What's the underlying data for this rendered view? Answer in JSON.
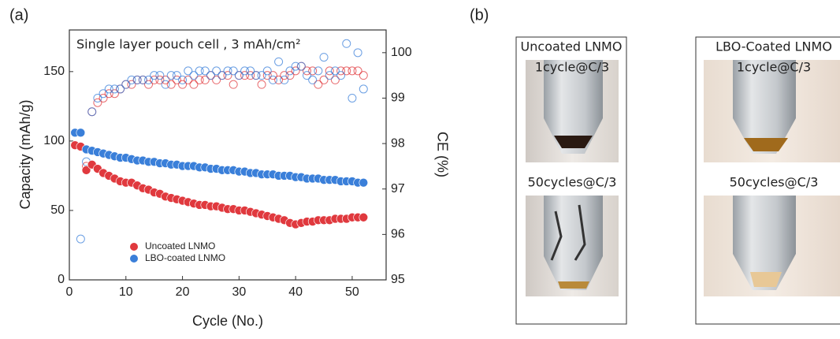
{
  "panel_label": "(a)",
  "chart_data": {
    "type": "scatter",
    "annotation": "Single layer pouch cell , 3 mAh/cm²",
    "x_label": "Cycle (No.)",
    "y_label": "Capacity (mAh/g)",
    "y2_label": "CE (%)",
    "x": [
      1,
      2,
      3,
      4,
      5,
      6,
      7,
      8,
      9,
      10,
      11,
      12,
      13,
      14,
      15,
      16,
      17,
      18,
      19,
      20,
      21,
      22,
      23,
      24,
      25,
      26,
      27,
      28,
      29,
      30,
      31,
      32,
      33,
      34,
      35,
      36,
      37,
      38,
      39,
      40,
      41,
      42,
      43,
      44,
      45,
      46,
      47,
      48,
      49,
      50,
      51,
      52
    ],
    "series": [
      {
        "name": "Uncoated LNMO",
        "color": "#e0393e",
        "values": [
          97,
          96,
          79,
          83,
          80,
          77,
          75,
          73,
          71,
          70,
          70,
          68,
          66,
          65,
          63,
          62,
          60,
          59,
          58,
          57,
          56,
          55,
          54,
          54,
          53,
          53,
          52,
          51,
          51,
          50,
          50,
          49,
          48,
          47,
          46,
          45,
          44,
          43,
          41,
          40,
          41,
          42,
          42,
          43,
          43,
          43,
          44,
          44,
          44,
          45,
          45,
          45
        ],
        "y2_values": [
          null,
          null,
          97.5,
          98.7,
          98.9,
          99.0,
          99.1,
          99.1,
          99.2,
          99.3,
          99.3,
          99.4,
          99.4,
          99.3,
          99.4,
          99.4,
          99.4,
          99.3,
          99.4,
          99.3,
          99.4,
          99.3,
          99.4,
          99.4,
          99.5,
          99.4,
          99.5,
          99.5,
          99.3,
          99.5,
          99.5,
          99.5,
          99.5,
          99.3,
          99.5,
          99.5,
          99.4,
          99.5,
          99.5,
          99.6,
          99.7,
          99.6,
          99.6,
          99.3,
          99.4,
          99.6,
          99.4,
          99.6,
          99.6,
          99.6,
          99.6,
          99.5
        ]
      },
      {
        "name": "LBO-coated LNMO",
        "color": "#3a7fd9",
        "values": [
          106,
          106,
          94,
          93,
          92,
          91,
          90,
          89,
          88,
          88,
          87,
          86,
          86,
          85,
          85,
          84,
          84,
          83,
          83,
          82,
          82,
          82,
          81,
          81,
          80,
          80,
          79,
          79,
          79,
          78,
          78,
          77,
          77,
          76,
          76,
          76,
          75,
          75,
          75,
          74,
          74,
          73,
          73,
          73,
          72,
          72,
          72,
          71,
          71,
          71,
          70,
          70
        ],
        "y2_values": [
          null,
          95.9,
          97.6,
          98.7,
          99.0,
          99.1,
          99.2,
          99.2,
          99.2,
          99.3,
          99.4,
          99.4,
          99.4,
          99.4,
          99.5,
          99.5,
          99.3,
          99.5,
          99.5,
          99.4,
          99.6,
          99.5,
          99.6,
          99.6,
          99.5,
          99.6,
          99.5,
          99.6,
          99.6,
          99.5,
          99.6,
          99.6,
          99.5,
          99.5,
          99.6,
          99.4,
          99.8,
          99.4,
          99.6,
          99.7,
          99.7,
          99.5,
          99.4,
          99.6,
          99.9,
          99.5,
          99.6,
          99.5,
          100.2,
          99.0,
          100.0,
          99.2
        ]
      }
    ],
    "xlim": [
      0,
      56
    ],
    "xticks": [
      0,
      10,
      20,
      30,
      40,
      50
    ],
    "ylim": [
      0,
      180
    ],
    "yticks": [
      0,
      50,
      100,
      150
    ],
    "y2lim": [
      95,
      100.5
    ],
    "y2ticks": [
      95,
      96,
      97,
      98,
      99,
      100
    ],
    "legend": "lower left"
  },
  "panel_b": {
    "label": "(b)",
    "columns": [
      {
        "title": "Uncoated LNMO",
        "rows": [
          "1cycle@C/3",
          "50cycles@C/3"
        ]
      },
      {
        "title": "LBO-Coated LNMO",
        "rows": [
          "1cycle@C/3",
          "50cycles@C/3"
        ]
      }
    ]
  }
}
